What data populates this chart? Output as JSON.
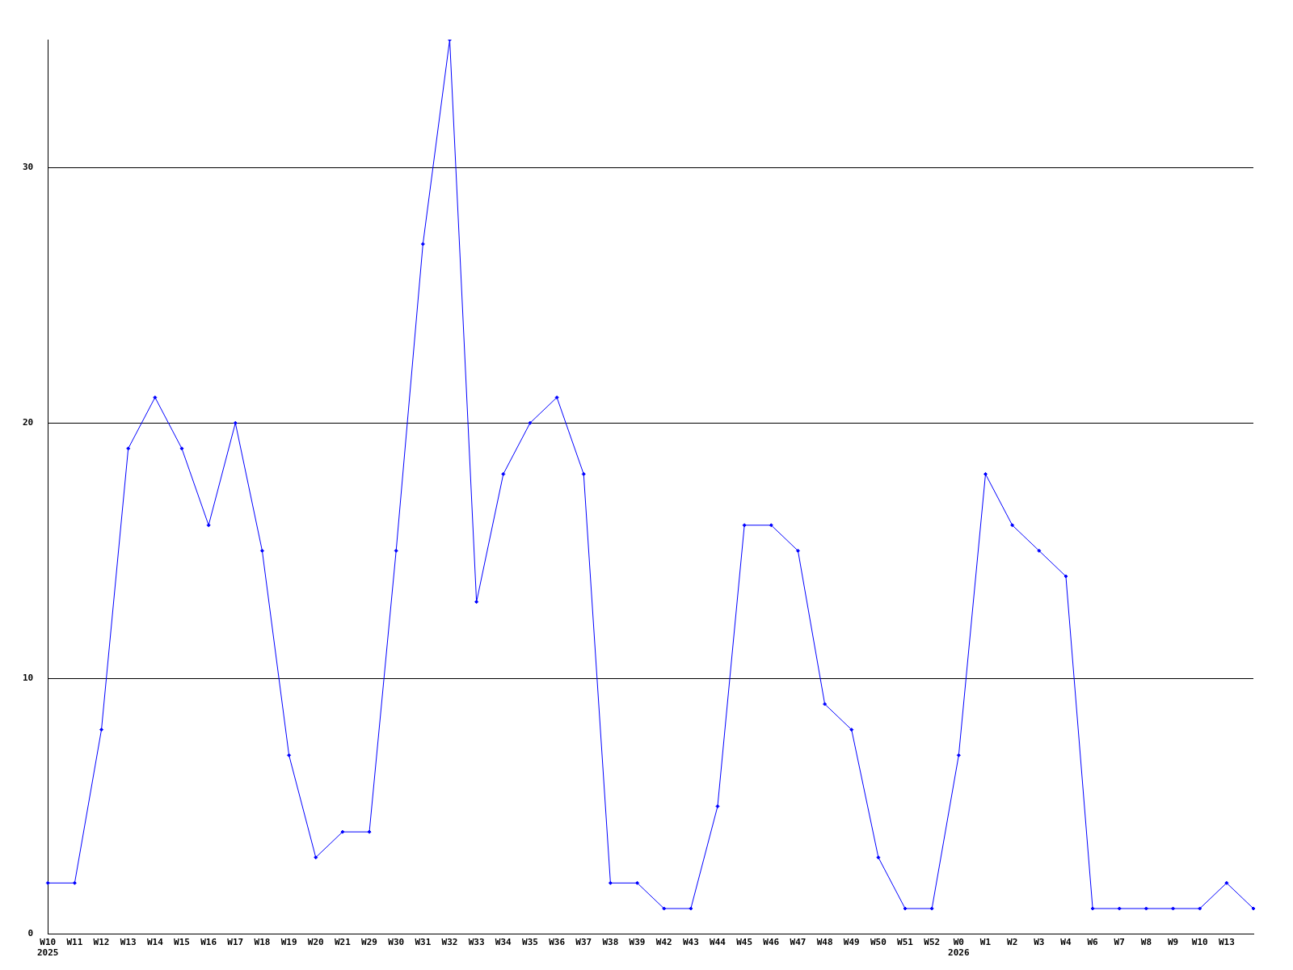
{
  "chart_data": {
    "type": "line",
    "categories": [
      "W10\n2025",
      "W11",
      "W12",
      "W13",
      "W14",
      "W15",
      "W16",
      "W17",
      "W18",
      "W19",
      "W20",
      "W21",
      "W29",
      "W30",
      "W31",
      "W32",
      "W33",
      "W34",
      "W35",
      "W36",
      "W37",
      "W38",
      "W39",
      "W42",
      "W43",
      "W44",
      "W45",
      "W46",
      "W47",
      "W48",
      "W49",
      "W50",
      "W51",
      "W52",
      "W0\n2026",
      "W1",
      "W2",
      "W3",
      "W4",
      "W6",
      "W7",
      "W8",
      "W9",
      "W10",
      "W13",
      null
    ],
    "series": [
      {
        "color": "#0000ff",
        "values": [
          2,
          2,
          8,
          19,
          21,
          19,
          16,
          20,
          15,
          7,
          3,
          4,
          4,
          15,
          27,
          35,
          13,
          18,
          20,
          21,
          18,
          2,
          2,
          1,
          1,
          5,
          16,
          16,
          15,
          9,
          8,
          3,
          1,
          1,
          7,
          18,
          16,
          15,
          14,
          1,
          1,
          1,
          1,
          1,
          2,
          1
        ]
      }
    ],
    "ylim": [
      0,
      35
    ],
    "yticks": [
      0,
      10,
      20,
      30
    ],
    "grid": "y",
    "marker": "diamond",
    "line_style": "solid"
  }
}
